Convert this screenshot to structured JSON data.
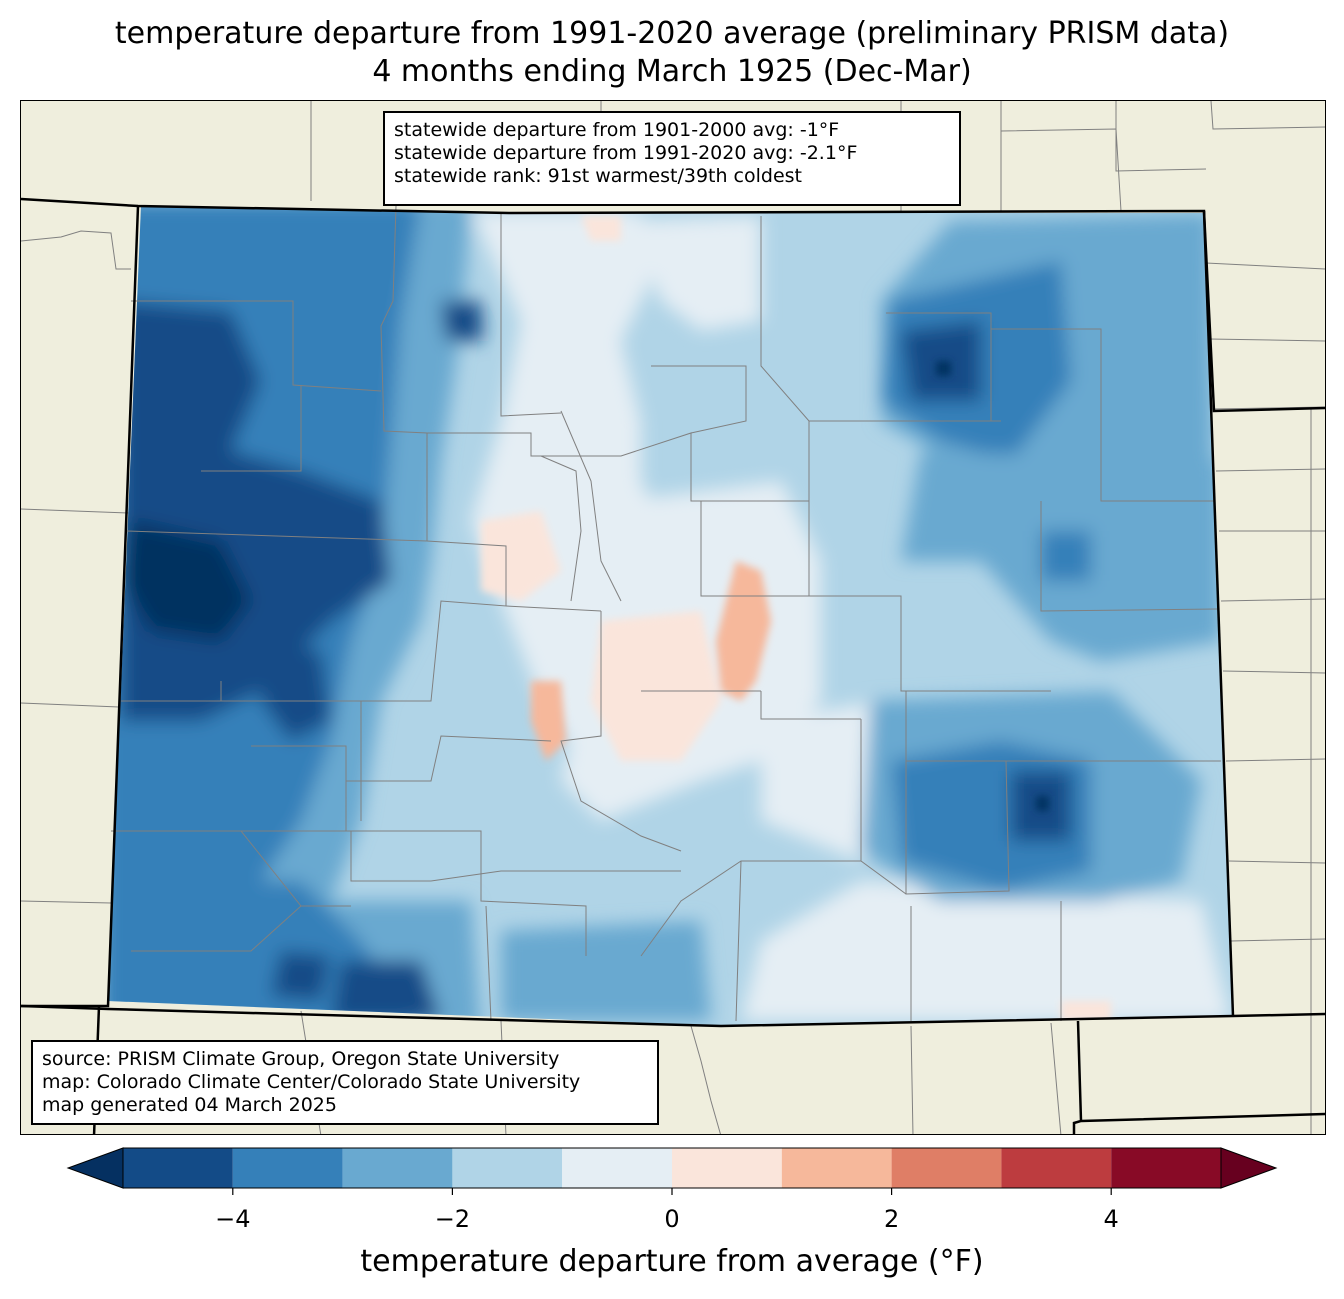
{
  "title": {
    "line1": "temperature departure from 1991-2020 average (preliminary PRISM data)",
    "line2": "4 months ending March 1925 (Dec-Mar)"
  },
  "stats": {
    "line1": "statewide departure from 1901-2000 avg: -1°F",
    "line2": "statewide departure from 1991-2020 avg: -2.1°F",
    "line3": "statewide rank: 91st warmest/39th coldest"
  },
  "source": {
    "line1": "source: PRISM Climate Group, Oregon State University",
    "line2": "map: Colorado Climate Center/Colorado State University",
    "line3": "map generated 04 March 2025"
  },
  "colorbar": {
    "label": "temperature departure from average (°F)",
    "ticks": [
      "−4",
      "−2",
      "0",
      "2",
      "4"
    ],
    "tick_values": [
      -4,
      -2,
      0,
      2,
      4
    ],
    "range": [
      -5,
      5
    ],
    "levels": [
      -5,
      -4,
      -3,
      -2,
      -1,
      0,
      1,
      2,
      3,
      4,
      5
    ],
    "colors": [
      "#134b87",
      "#3580b9",
      "#69a9d0",
      "#b0d4e7",
      "#e5eef4",
      "#fae5db",
      "#f6b89b",
      "#df7e66",
      "#bd3c3f",
      "#880a26"
    ],
    "under_color": "#053061",
    "over_color": "#67001f"
  },
  "colors": {
    "land": "#efeedd",
    "border": "#000000",
    "county_lines": "#808080"
  }
}
